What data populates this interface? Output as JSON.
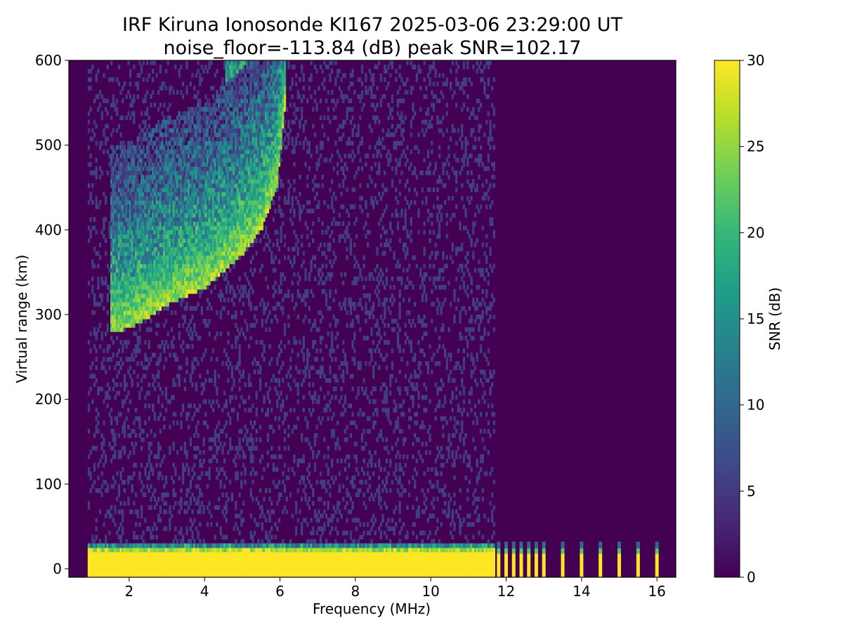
{
  "chart_data": {
    "type": "heatmap",
    "title": "IRF Kiruna Ionosonde KI167 2025-03-06 23:29:00  UT",
    "subtitle": "noise_floor=-113.84 (dB) peak SNR=102.17",
    "xlabel": "Frequency (MHz)",
    "ylabel": "Virtual range (km)",
    "colorbar_label": "SNR (dB)",
    "colormap": "viridis",
    "xlim": [
      0.4,
      16.5
    ],
    "ylim": [
      -10,
      600
    ],
    "clim": [
      0,
      30
    ],
    "x_ticks": [
      2,
      4,
      6,
      8,
      10,
      12,
      14,
      16
    ],
    "y_ticks": [
      0,
      100,
      200,
      300,
      400,
      500,
      600
    ],
    "colorbar_ticks": [
      0,
      5,
      10,
      15,
      20,
      25,
      30
    ],
    "data_freq_range": [
      0.9,
      16.3
    ],
    "ground_echo_band": {
      "range_km": [
        -10,
        30
      ],
      "freq_mhz": [
        0.9,
        11.7
      ],
      "snr": 30
    },
    "f_layer_trace": [
      {
        "freq": 1.5,
        "range_km": 276
      },
      {
        "freq": 2.0,
        "range_km": 282
      },
      {
        "freq": 2.5,
        "range_km": 295
      },
      {
        "freq": 3.0,
        "range_km": 310
      },
      {
        "freq": 3.5,
        "range_km": 320
      },
      {
        "freq": 4.0,
        "range_km": 330
      },
      {
        "freq": 4.5,
        "range_km": 350
      },
      {
        "freq": 5.0,
        "range_km": 370
      },
      {
        "freq": 5.5,
        "range_km": 400
      },
      {
        "freq": 5.9,
        "range_km": 450
      },
      {
        "freq": 6.1,
        "range_km": 540
      }
    ],
    "discrete_channels_mhz": [
      11.8,
      12.0,
      12.2,
      12.4,
      12.6,
      12.8,
      13.0,
      13.5,
      14.0,
      14.5,
      15.0,
      15.5,
      16.0
    ],
    "peak_snr": 102.17,
    "noise_floor_db": -113.84
  },
  "colors": {
    "viridis": [
      "#440154",
      "#482878",
      "#3e4a89",
      "#31688e",
      "#26828e",
      "#1f9e89",
      "#35b779",
      "#6ece58",
      "#b5de2b",
      "#fde725"
    ]
  }
}
